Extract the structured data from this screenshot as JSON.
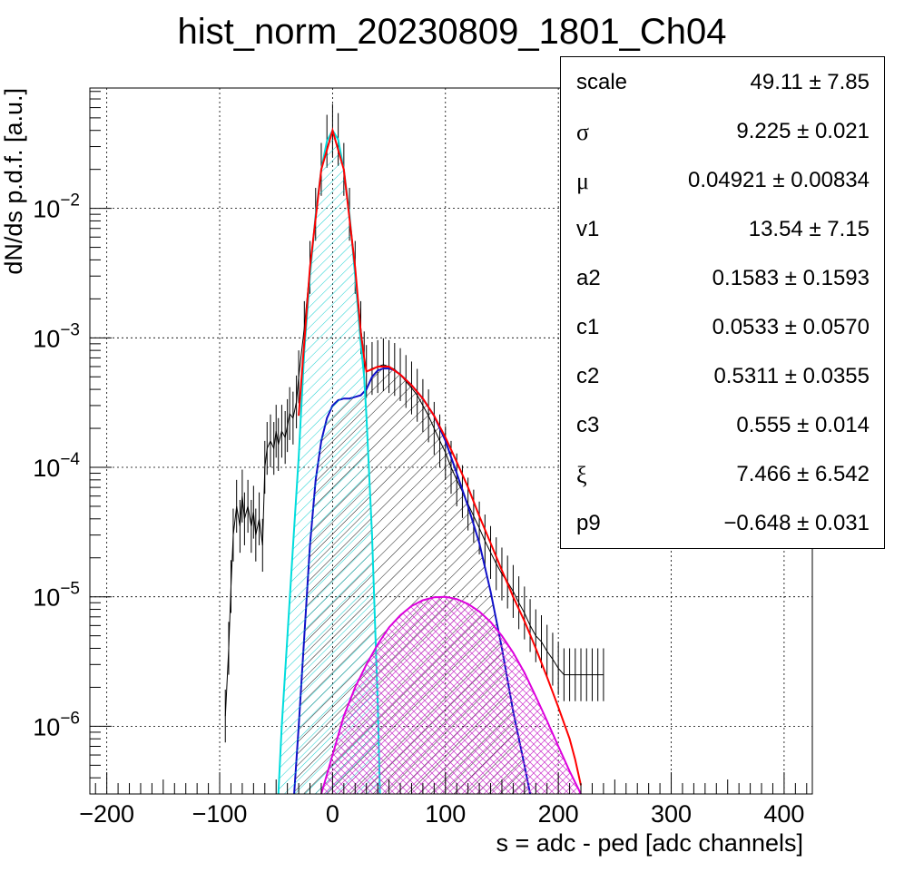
{
  "chart_data": {
    "type": "line",
    "title": "hist_norm_20230809_1801_Ch04",
    "xlabel": "s = adc - ped [adc channels]",
    "ylabel": "dN/ds p.d.f. [a.u.]",
    "xlim": [
      -215,
      425
    ],
    "ylim": [
      3e-07,
      0.085
    ],
    "yscale": "log",
    "grid": true,
    "x_ticks": [
      -200,
      -100,
      0,
      100,
      200,
      300,
      400
    ],
    "x_tick_labels": [
      "−200",
      "−100",
      "0",
      "100",
      "200",
      "300",
      "400"
    ],
    "y_ticks": [
      1e-06,
      1e-05,
      0.0001,
      0.001,
      0.01
    ],
    "y_tick_labels": [
      {
        "base": "10",
        "exp": "−6"
      },
      {
        "base": "10",
        "exp": "−5"
      },
      {
        "base": "10",
        "exp": "−4"
      },
      {
        "base": "10",
        "exp": "−3"
      },
      {
        "base": "10",
        "exp": "−2"
      }
    ],
    "series": [
      {
        "kind": "histogram",
        "color": "#000000",
        "x": [
          -95,
          -92,
          -90,
          -88,
          -85,
          -82,
          -80,
          -78,
          -75,
          -72,
          -70,
          -68,
          -65,
          -62,
          -60,
          -58,
          -55,
          -52,
          -50,
          -48,
          -45,
          -42,
          -40,
          -38,
          -35,
          -32,
          -30,
          -25,
          -20,
          -15,
          -10,
          -5,
          0,
          5,
          10,
          15,
          20,
          25,
          28,
          30,
          35,
          40,
          45,
          50,
          55,
          60,
          65,
          70,
          75,
          80,
          85,
          90,
          95,
          100,
          105,
          110,
          115,
          120,
          125,
          130,
          135,
          140,
          145,
          150,
          155,
          160,
          165,
          170,
          175,
          180,
          185,
          190,
          195,
          200,
          205,
          210,
          215,
          220,
          225,
          230,
          235,
          240
        ],
        "y": [
          1.2e-06,
          4e-06,
          1.2e-05,
          3e-05,
          5e-05,
          3.5e-05,
          6e-05,
          4e-05,
          5e-05,
          3.5e-05,
          4.5e-05,
          3e-05,
          4e-05,
          2.5e-05,
          0.0001,
          0.00014,
          0.00016,
          0.00014,
          0.00019,
          0.00015,
          0.00019,
          0.00017,
          0.00021,
          0.00026,
          0.00024,
          0.00032,
          0.0005,
          0.0012,
          0.0035,
          0.009,
          0.02,
          0.033,
          0.04,
          0.034,
          0.02,
          0.009,
          0.0035,
          0.0012,
          0.0007,
          0.00055,
          0.00058,
          0.0006,
          0.00062,
          0.0006,
          0.00057,
          0.00052,
          0.00046,
          0.00041,
          0.00036,
          0.0003,
          0.00025,
          0.0002,
          0.00016,
          0.00013,
          0.0001,
          8e-05,
          6.5e-05,
          5.2e-05,
          4.2e-05,
          3.4e-05,
          2.7e-05,
          2.2e-05,
          1.8e-05,
          1.5e-05,
          1.3e-05,
          1.1e-05,
          9e-06,
          7.5e-06,
          6e-06,
          5e-06,
          4.5e-06,
          3.8e-06,
          3.3e-06,
          2.8e-06,
          2.5e-06,
          2.5e-06,
          2.5e-06,
          2.5e-06,
          2.5e-06,
          2.5e-06,
          2.5e-06,
          2.5e-06
        ]
      },
      {
        "kind": "total-fit",
        "color": "#ff0000",
        "x": [
          -30,
          -20,
          -10,
          0,
          10,
          20,
          25,
          28,
          30,
          35,
          40,
          50,
          60,
          70,
          80,
          90,
          100,
          110,
          120,
          130,
          140,
          150,
          160,
          170,
          180,
          190,
          200,
          210,
          215,
          220
        ],
        "y": [
          0.00025,
          0.0035,
          0.02,
          0.04,
          0.02,
          0.0035,
          0.0011,
          0.0007,
          0.00055,
          0.00057,
          0.0006,
          0.0006,
          0.00052,
          0.00043,
          0.00034,
          0.00025,
          0.00017,
          0.00011,
          7e-05,
          4.2e-05,
          2.6e-05,
          1.6e-05,
          1e-05,
          6.5e-06,
          4e-06,
          2.4e-06,
          1.4e-06,
          8e-07,
          5.5e-07,
          3.5e-07
        ]
      },
      {
        "kind": "pedestal-component",
        "color": "#00dddd",
        "fill": "hatch",
        "x": [
          -48,
          -45,
          -40,
          -35,
          -30,
          -25,
          -20,
          -15,
          -10,
          -5,
          0,
          5,
          10,
          15,
          20,
          25,
          28,
          30,
          35,
          40,
          42
        ],
        "y": [
          3e-07,
          1e-06,
          5e-06,
          2.5e-05,
          0.00012,
          0.0008,
          0.003,
          0.009,
          0.02,
          0.033,
          0.04,
          0.034,
          0.02,
          0.009,
          0.003,
          0.0009,
          0.0005,
          0.00025,
          3e-05,
          1.5e-06,
          3e-07
        ]
      },
      {
        "kind": "signal-component",
        "color": "#0000cc",
        "fill": "hatch",
        "x": [
          -34,
          -30,
          -25,
          -20,
          -15,
          -10,
          -5,
          0,
          5,
          10,
          15,
          20,
          25,
          30,
          35,
          40,
          45,
          50,
          55,
          60,
          70,
          80,
          90,
          100,
          110,
          120,
          130,
          140,
          150,
          160,
          170,
          175
        ],
        "y": [
          3e-07,
          1e-06,
          5e-06,
          2.5e-05,
          8e-05,
          0.00016,
          0.00024,
          0.0003,
          0.00033,
          0.00034,
          0.00034,
          0.00035,
          0.00036,
          0.0004,
          0.0005,
          0.00056,
          0.00058,
          0.00058,
          0.00056,
          0.00052,
          0.00043,
          0.00034,
          0.00025,
          0.00016,
          9e-05,
          5e-05,
          2.6e-05,
          1.1e-05,
          4e-06,
          1.3e-06,
          5e-07,
          3e-07
        ]
      },
      {
        "kind": "tail-component",
        "color": "#dd00dd",
        "fill": "crosshatch",
        "x": [
          -10,
          0,
          10,
          20,
          30,
          40,
          50,
          60,
          70,
          80,
          90,
          100,
          110,
          120,
          130,
          140,
          150,
          160,
          170,
          180,
          190,
          200,
          210,
          220
        ],
        "y": [
          3e-07,
          6e-07,
          1.2e-06,
          2e-06,
          3e-06,
          4.3e-06,
          5.8e-06,
          7.2e-06,
          8.5e-06,
          9.4e-06,
          9.9e-06,
          1e-05,
          9.6e-06,
          8.8e-06,
          7.7e-06,
          6.4e-06,
          5e-06,
          3.7e-06,
          2.6e-06,
          1.7e-06,
          1.1e-06,
          7e-07,
          4.5e-07,
          3e-07
        ]
      }
    ]
  },
  "stats": [
    {
      "name": "scale",
      "value": "49.11 ± 7.85",
      "greek": false
    },
    {
      "name": "σ",
      "value": "9.225 ± 0.021",
      "greek": true
    },
    {
      "name": "μ",
      "value": "0.04921 ± 0.00834",
      "greek": true
    },
    {
      "name": "v1",
      "value": "13.54 ± 7.15",
      "greek": false
    },
    {
      "name": "a2",
      "value": "0.1583 ± 0.1593",
      "greek": false
    },
    {
      "name": "c1",
      "value": "0.0533 ± 0.0570",
      "greek": false
    },
    {
      "name": "c2",
      "value": "0.5311 ± 0.0355",
      "greek": false
    },
    {
      "name": "c3",
      "value": "0.555 ± 0.014",
      "greek": false
    },
    {
      "name": "ξ",
      "value": "7.466 ± 6.542",
      "greek": true
    },
    {
      "name": "p9",
      "value": "−0.648 ± 0.031",
      "greek": false
    }
  ]
}
